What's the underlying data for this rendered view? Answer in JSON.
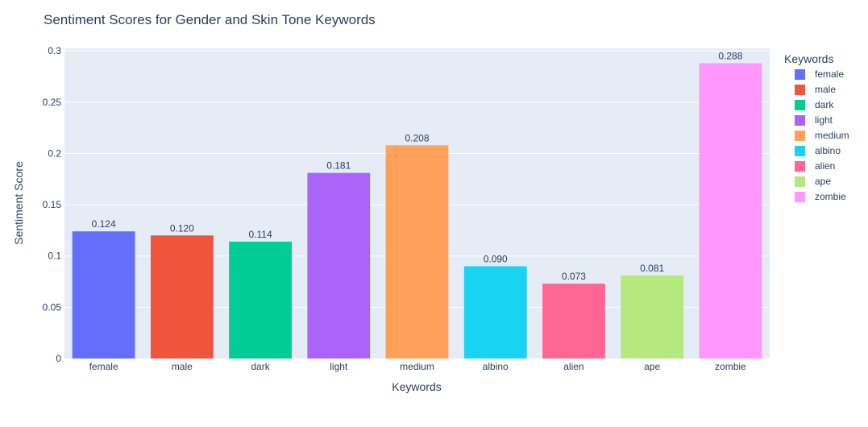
{
  "chart_data": {
    "type": "bar",
    "title": "Sentiment Scores for Gender and Skin Tone Keywords",
    "xlabel": "Keywords",
    "ylabel": "Sentiment Score",
    "categories": [
      "female",
      "male",
      "dark",
      "light",
      "medium",
      "albino",
      "alien",
      "ape",
      "zombie"
    ],
    "values": [
      0.124,
      0.12,
      0.114,
      0.181,
      0.208,
      0.09,
      0.073,
      0.081,
      0.288
    ],
    "value_labels": [
      "0.124",
      "0.120",
      "0.114",
      "0.181",
      "0.208",
      "0.090",
      "0.073",
      "0.081",
      "0.288"
    ],
    "colors": [
      "#636efa",
      "#ef553b",
      "#00cc96",
      "#ab63fa",
      "#ffa15a",
      "#19d3f3",
      "#ff6692",
      "#b6e880",
      "#ff97ff"
    ],
    "ylim": [
      0,
      0.3025
    ],
    "yticks": [
      0,
      0.05,
      0.1,
      0.15,
      0.2,
      0.25,
      0.3
    ],
    "ytick_labels": [
      "0",
      "0.05",
      "0.1",
      "0.15",
      "0.2",
      "0.25",
      "0.3"
    ],
    "grid": true,
    "legend": {
      "title": "Keywords",
      "placement": "right"
    },
    "background_color": "#e5ecf6"
  }
}
